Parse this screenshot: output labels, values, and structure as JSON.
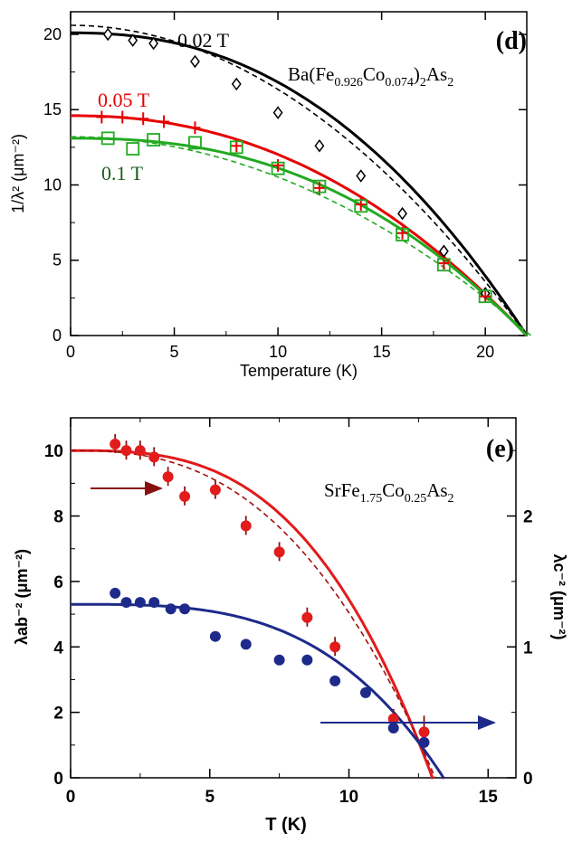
{
  "chart_data": [
    {
      "type": "line",
      "panel_label": "(d)",
      "compound": {
        "base": "Ba(Fe",
        "sub1": "0.926",
        "mid": "Co",
        "sub2": "0.074",
        "close": ")",
        "sub3": "2",
        "tail": "As",
        "sub4": "2"
      },
      "xlabel": "Temperature (K)",
      "ylabel": "1/λ² (μm⁻²)",
      "xlim": [
        0,
        22
      ],
      "ylim": [
        0,
        21.5
      ],
      "xticks": [
        "0",
        "5",
        "10",
        "15",
        "20"
      ],
      "yticks": [
        "0",
        "5",
        "10",
        "15",
        "20"
      ],
      "series": [
        {
          "name": "0.02 T",
          "color": "#000000",
          "marker": "diamond",
          "x": [
            1.8,
            3.0,
            4.0,
            6.0,
            8.0,
            10.0,
            12.0,
            14.0,
            16.0,
            18.0,
            20.0
          ],
          "y": [
            20.0,
            19.6,
            19.4,
            18.2,
            16.7,
            14.8,
            12.6,
            10.6,
            8.1,
            5.6,
            2.8
          ]
        },
        {
          "name": "0.05 T",
          "color": "#e60000",
          "marker": "plus",
          "x": [
            1.5,
            2.5,
            3.5,
            4.5,
            6.0,
            8.0,
            10.0,
            12.0,
            14.0,
            16.0,
            18.0,
            20.0
          ],
          "y": [
            14.5,
            14.5,
            14.4,
            14.2,
            13.8,
            12.6,
            11.3,
            9.8,
            8.7,
            6.8,
            4.8,
            2.6
          ]
        },
        {
          "name": "0.1 T",
          "color": "#22aa22",
          "label_color": "#1a5c1a",
          "marker": "square",
          "x": [
            1.8,
            3.0,
            4.0,
            6.0,
            8.0,
            10.0,
            12.0,
            14.0,
            16.0,
            18.0,
            20.0
          ],
          "y": [
            13.1,
            12.4,
            13.0,
            12.8,
            12.5,
            11.1,
            9.9,
            8.6,
            6.7,
            4.7,
            2.6
          ]
        }
      ]
    },
    {
      "type": "scatter",
      "panel_label": "(e)",
      "compound": {
        "base": "SrFe",
        "sub1": "1.75",
        "mid": "Co",
        "sub2": "0.25",
        "tail": "As",
        "sub3": "2"
      },
      "xlabel": "T (K)",
      "ylabel_left": "λab⁻² (μm⁻²)",
      "ylabel_right": "λc⁻² (μm⁻²)",
      "xlim": [
        0,
        16
      ],
      "ylim_left": [
        0,
        11
      ],
      "ylim_right": [
        0,
        2.75
      ],
      "xticks": [
        "0",
        "5",
        "10",
        "15"
      ],
      "yticks_left": [
        "0",
        "2",
        "4",
        "6",
        "8",
        "10"
      ],
      "yticks_right": [
        "0",
        "1",
        "2"
      ],
      "series": [
        {
          "name": "λab⁻²",
          "axis": "left",
          "color": "#e21b1b",
          "x": [
            1.6,
            2.0,
            2.5,
            3.0,
            3.5,
            4.1,
            5.2,
            6.3,
            7.5,
            8.5,
            9.5,
            11.6,
            12.7
          ],
          "y": [
            10.2,
            10.0,
            10.0,
            9.8,
            9.2,
            8.6,
            8.8,
            7.7,
            6.9,
            4.9,
            4.0,
            1.8,
            1.4
          ]
        },
        {
          "name": "λc⁻²",
          "axis": "right",
          "color": "#1e2a8a",
          "x": [
            1.6,
            2.0,
            2.5,
            3.0,
            3.6,
            4.1,
            5.2,
            6.3,
            7.5,
            8.5,
            9.5,
            10.6,
            11.6,
            12.7
          ],
          "y": [
            1.41,
            1.34,
            1.34,
            1.34,
            1.29,
            1.29,
            1.08,
            1.02,
            0.9,
            0.9,
            0.74,
            0.65,
            0.38,
            0.27
          ]
        }
      ]
    }
  ]
}
